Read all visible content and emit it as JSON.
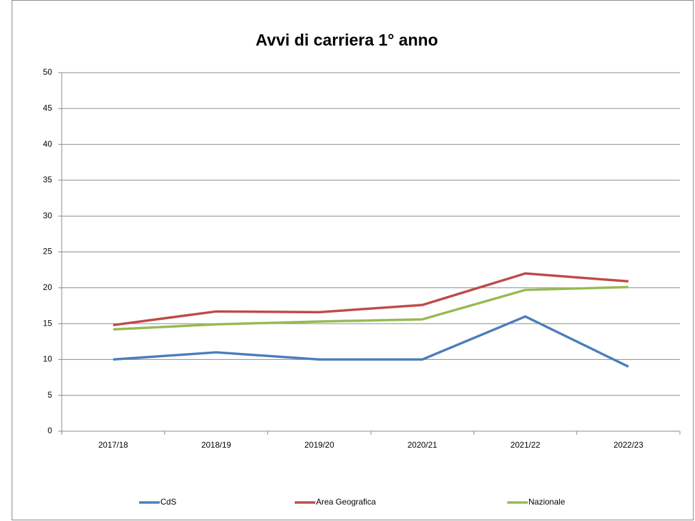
{
  "chart_data": {
    "type": "line",
    "title": "Avvi di carriera 1° anno",
    "categories": [
      "2017/18",
      "2018/19",
      "2019/20",
      "2020/21",
      "2021/22",
      "2022/23"
    ],
    "series": [
      {
        "name": "CdS",
        "color": "#4a7ebb",
        "values": [
          10,
          11,
          10,
          10,
          16,
          9
        ]
      },
      {
        "name": "Area Geografica",
        "color": "#be4b48",
        "values": [
          14.8,
          16.7,
          16.6,
          17.6,
          22.0,
          20.9
        ]
      },
      {
        "name": "Nazionale",
        "color": "#98b954",
        "values": [
          14.2,
          14.9,
          15.3,
          15.6,
          19.7,
          20.1
        ]
      }
    ],
    "ylim": [
      0,
      50
    ],
    "yticks": [
      0,
      5,
      10,
      15,
      20,
      25,
      30,
      35,
      40,
      45,
      50
    ],
    "grid": true,
    "legend": "bottom"
  }
}
